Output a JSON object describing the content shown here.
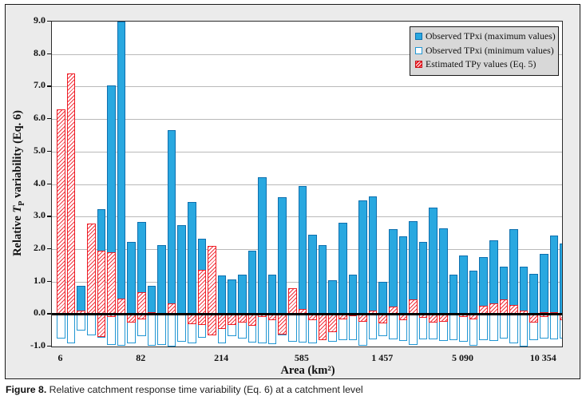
{
  "caption": {
    "prefix": "Figure 8.",
    "text": " Relative catchment response time variability (Eq. 6) at a catchment level"
  },
  "chart_data": {
    "type": "bar",
    "title": "",
    "xlabel": "Area (km²)",
    "ylabel": "Relative TP variability (Eq. 6)",
    "ylabel_parts": {
      "prefix": "Relative ",
      "symbol": "T",
      "subscript": "P",
      "suffix": " variability (Eq. 6)"
    },
    "ylim": [
      -1,
      9
    ],
    "grid": "horizontal",
    "legend_position": "top-right",
    "y_tick_labels": [
      "9.0",
      "8.0",
      "7.0",
      "6.0",
      "5.0",
      "4.0",
      "3.0",
      "2.0",
      "1.0",
      "0.0",
      "-1.0"
    ],
    "x_tick_labels": [
      {
        "index": 0,
        "label": "6"
      },
      {
        "index": 8,
        "label": "82"
      },
      {
        "index": 16,
        "label": "214"
      },
      {
        "index": 24,
        "label": "585"
      },
      {
        "index": 32,
        "label": "1 457"
      },
      {
        "index": 40,
        "label": "5 090"
      },
      {
        "index": 48,
        "label": "10 354"
      }
    ],
    "legend": [
      {
        "label": "Observed TPxi (maximum values)",
        "swatch": "solid-blue-square"
      },
      {
        "label": "Observed TPxi (minimum values)",
        "swatch": "white-blue-outline-square"
      },
      {
        "label": "Estimated TPy values (Eq. 5)",
        "swatch": "red-hatched-square"
      }
    ],
    "series": [
      {
        "name": "Observed TPxi (maximum values)",
        "values": [
          null,
          null,
          0.87,
          null,
          3.22,
          7.03,
          9.0,
          2.21,
          2.83,
          0.87,
          2.12,
          5.66,
          2.74,
          3.46,
          2.33,
          null,
          1.19,
          1.06,
          1.21,
          1.96,
          4.2,
          1.22,
          3.6,
          null,
          3.95,
          2.43,
          2.11,
          1.05,
          2.82,
          1.21,
          3.49,
          3.62,
          0.98,
          2.61,
          2.39,
          2.85,
          2.21,
          3.28,
          2.63,
          1.21,
          1.8,
          1.33,
          1.75,
          2.26,
          1.47,
          2.61,
          1.45,
          1.24,
          1.86,
          2.42,
          2.16
        ]
      },
      {
        "name": "Observed TPxi (minimum values)",
        "values": [
          -0.75,
          -0.9,
          -0.5,
          -0.65,
          -0.73,
          -0.96,
          -0.97,
          -0.9,
          -0.68,
          -0.97,
          -0.95,
          -1.0,
          -0.85,
          -0.91,
          -0.73,
          -0.66,
          -0.9,
          -0.68,
          -0.75,
          -0.87,
          -0.9,
          -0.92,
          -0.65,
          -0.85,
          -0.88,
          -0.9,
          -0.81,
          -0.86,
          -0.8,
          -0.81,
          -0.97,
          -0.78,
          -0.68,
          -0.79,
          -0.83,
          -0.94,
          -0.78,
          -0.79,
          -0.82,
          -0.8,
          -0.85,
          -0.97,
          -0.8,
          -0.84,
          -0.76,
          -0.91,
          -1.0,
          -0.8,
          -0.76,
          -0.79,
          -0.75
        ]
      },
      {
        "name": "Estimated TPy values (Eq. 5) — positive part",
        "values": [
          6.3,
          7.4,
          0.1,
          2.78,
          1.95,
          1.91,
          0.48,
          0,
          0.66,
          0.05,
          0,
          0.33,
          0,
          0,
          1.35,
          2.09,
          0,
          0,
          0,
          0,
          0,
          0,
          0,
          0.8,
          0.15,
          0,
          0,
          0,
          0,
          0,
          0,
          0.11,
          0,
          0.23,
          0,
          0.44,
          0,
          0,
          0,
          0,
          0,
          0,
          0.25,
          0.33,
          0.44,
          0.27,
          0.11,
          0,
          0.07,
          0.07,
          0
        ]
      },
      {
        "name": "Estimated TPy values (Eq. 5) — negative part",
        "values": [
          0,
          0,
          0,
          0,
          -0.7,
          -0.08,
          0,
          -0.27,
          -0.17,
          0,
          0,
          0,
          0,
          -0.31,
          -0.35,
          -0.66,
          -0.47,
          -0.35,
          -0.27,
          -0.37,
          -0.1,
          -0.18,
          -0.64,
          0,
          0,
          -0.18,
          -0.81,
          -0.55,
          -0.17,
          -0.06,
          -0.25,
          0,
          -0.28,
          0,
          -0.18,
          0,
          -0.12,
          -0.26,
          -0.25,
          0,
          -0.1,
          -0.16,
          0,
          0,
          0,
          0,
          0,
          -0.26,
          -0.09,
          -0.05,
          -0.2
        ]
      }
    ],
    "colors": {
      "blue_fill": "#29a8e0",
      "blue_border": "#0e6fae",
      "red": "#ee1c24",
      "figure_bg": "#ebebeb",
      "legend_bg": "#d8d8d8",
      "gridline": "#b9b9b9"
    }
  }
}
